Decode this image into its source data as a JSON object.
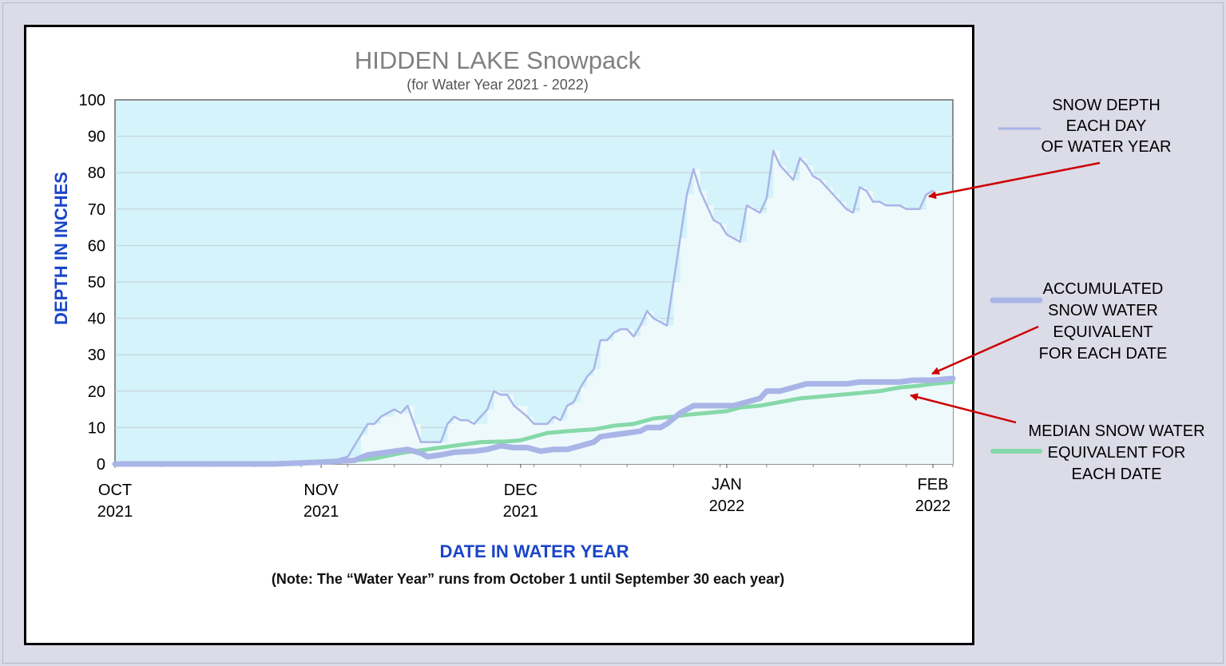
{
  "chart_data": {
    "type": "line",
    "title": "HIDDEN LAKE Snowpack",
    "subtitle": "(for Water Year 2021 - 2022)",
    "ylabel": "DEPTH IN INCHES",
    "xlabel": "DATE IN WATER YEAR",
    "note": "(Note:  The “Water Year” runs from October 1 until September 30 each year)",
    "ylim": [
      0,
      100
    ],
    "yticks": [
      0,
      10,
      20,
      30,
      40,
      50,
      60,
      70,
      80,
      90,
      100
    ],
    "grid": true,
    "xlim": [
      "2021-10-01",
      "2022-02-04"
    ],
    "x_tick_labels": [
      {
        "date": "2021-10-01",
        "line1": "OCT",
        "line2": "2021",
        "pos": "low"
      },
      {
        "date": "2021-11-01",
        "line1": "NOV",
        "line2": "2021",
        "pos": "low"
      },
      {
        "date": "2021-12-01",
        "line1": "DEC",
        "line2": "2021",
        "pos": "low"
      },
      {
        "date": "2022-01-01",
        "line1": "JAN",
        "line2": "2022",
        "pos": "high"
      },
      {
        "date": "2022-02-01",
        "line1": "FEB",
        "line2": "2022",
        "pos": "high"
      }
    ],
    "series": [
      {
        "name": "SNOW DEPTH EACH DAY OF WATER YEAR",
        "color": "#a9b5e6",
        "points": [
          [
            "2021-10-01",
            0
          ],
          [
            "2021-10-10",
            0
          ],
          [
            "2021-10-20",
            0
          ],
          [
            "2021-10-30",
            0
          ],
          [
            "2021-11-03",
            1
          ],
          [
            "2021-11-05",
            2
          ],
          [
            "2021-11-07",
            8
          ],
          [
            "2021-11-08",
            11
          ],
          [
            "2021-11-09",
            11
          ],
          [
            "2021-11-10",
            13
          ],
          [
            "2021-11-12",
            15
          ],
          [
            "2021-11-13",
            14
          ],
          [
            "2021-11-14",
            16
          ],
          [
            "2021-11-15",
            11
          ],
          [
            "2021-11-16",
            6
          ],
          [
            "2021-11-17",
            6
          ],
          [
            "2021-11-18",
            6
          ],
          [
            "2021-11-19",
            6
          ],
          [
            "2021-11-20",
            11
          ],
          [
            "2021-11-21",
            13
          ],
          [
            "2021-11-22",
            12
          ],
          [
            "2021-11-23",
            12
          ],
          [
            "2021-11-24",
            11
          ],
          [
            "2021-11-26",
            15
          ],
          [
            "2021-11-27",
            20
          ],
          [
            "2021-11-28",
            19
          ],
          [
            "2021-11-29",
            19
          ],
          [
            "2021-11-30",
            16
          ],
          [
            "2021-12-02",
            13
          ],
          [
            "2021-12-03",
            11
          ],
          [
            "2021-12-04",
            11
          ],
          [
            "2021-12-05",
            11
          ],
          [
            "2021-12-06",
            13
          ],
          [
            "2021-12-07",
            12
          ],
          [
            "2021-12-08",
            16
          ],
          [
            "2021-12-09",
            17
          ],
          [
            "2021-12-10",
            21
          ],
          [
            "2021-12-11",
            24
          ],
          [
            "2021-12-12",
            26
          ],
          [
            "2021-12-13",
            34
          ],
          [
            "2021-12-14",
            34
          ],
          [
            "2021-12-15",
            36
          ],
          [
            "2021-12-16",
            37
          ],
          [
            "2021-12-17",
            37
          ],
          [
            "2021-12-18",
            35
          ],
          [
            "2021-12-19",
            38
          ],
          [
            "2021-12-20",
            42
          ],
          [
            "2021-12-21",
            40
          ],
          [
            "2021-12-22",
            39
          ],
          [
            "2021-12-23",
            38
          ],
          [
            "2021-12-24",
            50
          ],
          [
            "2021-12-25",
            62
          ],
          [
            "2021-12-26",
            74
          ],
          [
            "2021-12-27",
            81
          ],
          [
            "2021-12-28",
            75
          ],
          [
            "2021-12-29",
            71
          ],
          [
            "2021-12-30",
            67
          ],
          [
            "2021-12-31",
            66
          ],
          [
            "2022-01-01",
            63
          ],
          [
            "2022-01-02",
            62
          ],
          [
            "2022-01-03",
            61
          ],
          [
            "2022-01-04",
            71
          ],
          [
            "2022-01-05",
            70
          ],
          [
            "2022-01-06",
            69
          ],
          [
            "2022-01-07",
            73
          ],
          [
            "2022-01-08",
            86
          ],
          [
            "2022-01-09",
            82
          ],
          [
            "2022-01-10",
            80
          ],
          [
            "2022-01-11",
            78
          ],
          [
            "2022-01-12",
            84
          ],
          [
            "2022-01-13",
            82
          ],
          [
            "2022-01-14",
            79
          ],
          [
            "2022-01-15",
            78
          ],
          [
            "2022-01-16",
            76
          ],
          [
            "2022-01-17",
            74
          ],
          [
            "2022-01-18",
            72
          ],
          [
            "2022-01-19",
            70
          ],
          [
            "2022-01-20",
            69
          ],
          [
            "2022-01-21",
            76
          ],
          [
            "2022-01-22",
            75
          ],
          [
            "2022-01-23",
            72
          ],
          [
            "2022-01-24",
            72
          ],
          [
            "2022-01-25",
            71
          ],
          [
            "2022-01-26",
            71
          ],
          [
            "2022-01-27",
            71
          ],
          [
            "2022-01-28",
            70
          ],
          [
            "2022-01-29",
            70
          ],
          [
            "2022-01-30",
            70
          ],
          [
            "2022-01-31",
            74
          ],
          [
            "2022-02-01",
            75
          ]
        ]
      },
      {
        "name": "ACCUMULATED SNOW WATER EQUIVALENT FOR EACH DATE",
        "color": "#a9b5e6",
        "points": [
          [
            "2021-10-01",
            0
          ],
          [
            "2021-10-15",
            0
          ],
          [
            "2021-10-25",
            0
          ],
          [
            "2021-11-01",
            0.5
          ],
          [
            "2021-11-06",
            1
          ],
          [
            "2021-11-08",
            2.5
          ],
          [
            "2021-11-10",
            3
          ],
          [
            "2021-11-12",
            3.5
          ],
          [
            "2021-11-14",
            4
          ],
          [
            "2021-11-16",
            3
          ],
          [
            "2021-11-17",
            2
          ],
          [
            "2021-11-19",
            2.5
          ],
          [
            "2021-11-21",
            3.2
          ],
          [
            "2021-11-24",
            3.5
          ],
          [
            "2021-11-26",
            4
          ],
          [
            "2021-11-28",
            5
          ],
          [
            "2021-11-30",
            4.5
          ],
          [
            "2021-12-02",
            4.5
          ],
          [
            "2021-12-04",
            3.5
          ],
          [
            "2021-12-06",
            4
          ],
          [
            "2021-12-08",
            4
          ],
          [
            "2021-12-10",
            5
          ],
          [
            "2021-12-12",
            6
          ],
          [
            "2021-12-13",
            7.5
          ],
          [
            "2021-12-15",
            8
          ],
          [
            "2021-12-17",
            8.5
          ],
          [
            "2021-12-19",
            9
          ],
          [
            "2021-12-20",
            10
          ],
          [
            "2021-12-22",
            10
          ],
          [
            "2021-12-23",
            11
          ],
          [
            "2021-12-25",
            14
          ],
          [
            "2021-12-27",
            16
          ],
          [
            "2021-12-29",
            16
          ],
          [
            "2021-12-31",
            16
          ],
          [
            "2022-01-02",
            16
          ],
          [
            "2022-01-04",
            17
          ],
          [
            "2022-01-06",
            18
          ],
          [
            "2022-01-07",
            20
          ],
          [
            "2022-01-09",
            20
          ],
          [
            "2022-01-11",
            21
          ],
          [
            "2022-01-13",
            22
          ],
          [
            "2022-01-15",
            22
          ],
          [
            "2022-01-17",
            22
          ],
          [
            "2022-01-19",
            22
          ],
          [
            "2022-01-21",
            22.5
          ],
          [
            "2022-01-24",
            22.5
          ],
          [
            "2022-01-27",
            22.5
          ],
          [
            "2022-01-29",
            23
          ],
          [
            "2022-02-01",
            23
          ],
          [
            "2022-02-04",
            23.5
          ]
        ]
      },
      {
        "name": "MEDIAN SNOW WATER EQUIVALENT FOR EACH DATE",
        "color": "#86d9a8",
        "points": [
          [
            "2021-10-01",
            0
          ],
          [
            "2021-10-20",
            0
          ],
          [
            "2021-11-01",
            0.5
          ],
          [
            "2021-11-06",
            1
          ],
          [
            "2021-11-09",
            1.5
          ],
          [
            "2021-11-13",
            3
          ],
          [
            "2021-11-17",
            4
          ],
          [
            "2021-11-21",
            5
          ],
          [
            "2021-11-25",
            6
          ],
          [
            "2021-11-29",
            6.2
          ],
          [
            "2021-12-01",
            6.5
          ],
          [
            "2021-12-03",
            7.5
          ],
          [
            "2021-12-05",
            8.5
          ],
          [
            "2021-12-08",
            9
          ],
          [
            "2021-12-12",
            9.5
          ],
          [
            "2021-12-15",
            10.5
          ],
          [
            "2021-12-18",
            11
          ],
          [
            "2021-12-21",
            12.5
          ],
          [
            "2021-12-24",
            13
          ],
          [
            "2021-12-26",
            13.5
          ],
          [
            "2021-12-29",
            14
          ],
          [
            "2022-01-01",
            14.5
          ],
          [
            "2022-01-03",
            15.5
          ],
          [
            "2022-01-06",
            16
          ],
          [
            "2022-01-09",
            17
          ],
          [
            "2022-01-12",
            18
          ],
          [
            "2022-01-15",
            18.5
          ],
          [
            "2022-01-18",
            19
          ],
          [
            "2022-01-21",
            19.5
          ],
          [
            "2022-01-24",
            20
          ],
          [
            "2022-01-27",
            21
          ],
          [
            "2022-01-30",
            21.5
          ],
          [
            "2022-02-01",
            22
          ],
          [
            "2022-02-04",
            22.5
          ]
        ]
      }
    ],
    "annotations": [
      {
        "id": "depth",
        "lines": [
          "SNOW DEPTH",
          "EACH DAY",
          "OF WATER YEAR"
        ],
        "color": "#a9b5e6"
      },
      {
        "id": "swe",
        "lines": [
          "ACCUMULATED",
          "SNOW WATER",
          "EQUIVALENT",
          "FOR EACH DATE"
        ],
        "color": "#a9b5e6"
      },
      {
        "id": "median",
        "lines": [
          "MEDIAN SNOW WATER",
          "EQUIVALENT FOR",
          "EACH DATE"
        ],
        "color": "#86d9a8"
      }
    ],
    "colors": {
      "plot_background": "#d4f3fa",
      "snow_fill": "#eef9fc",
      "axis_title": "#1a45c8",
      "arrow": "#cc0000",
      "title": "#808080"
    }
  }
}
